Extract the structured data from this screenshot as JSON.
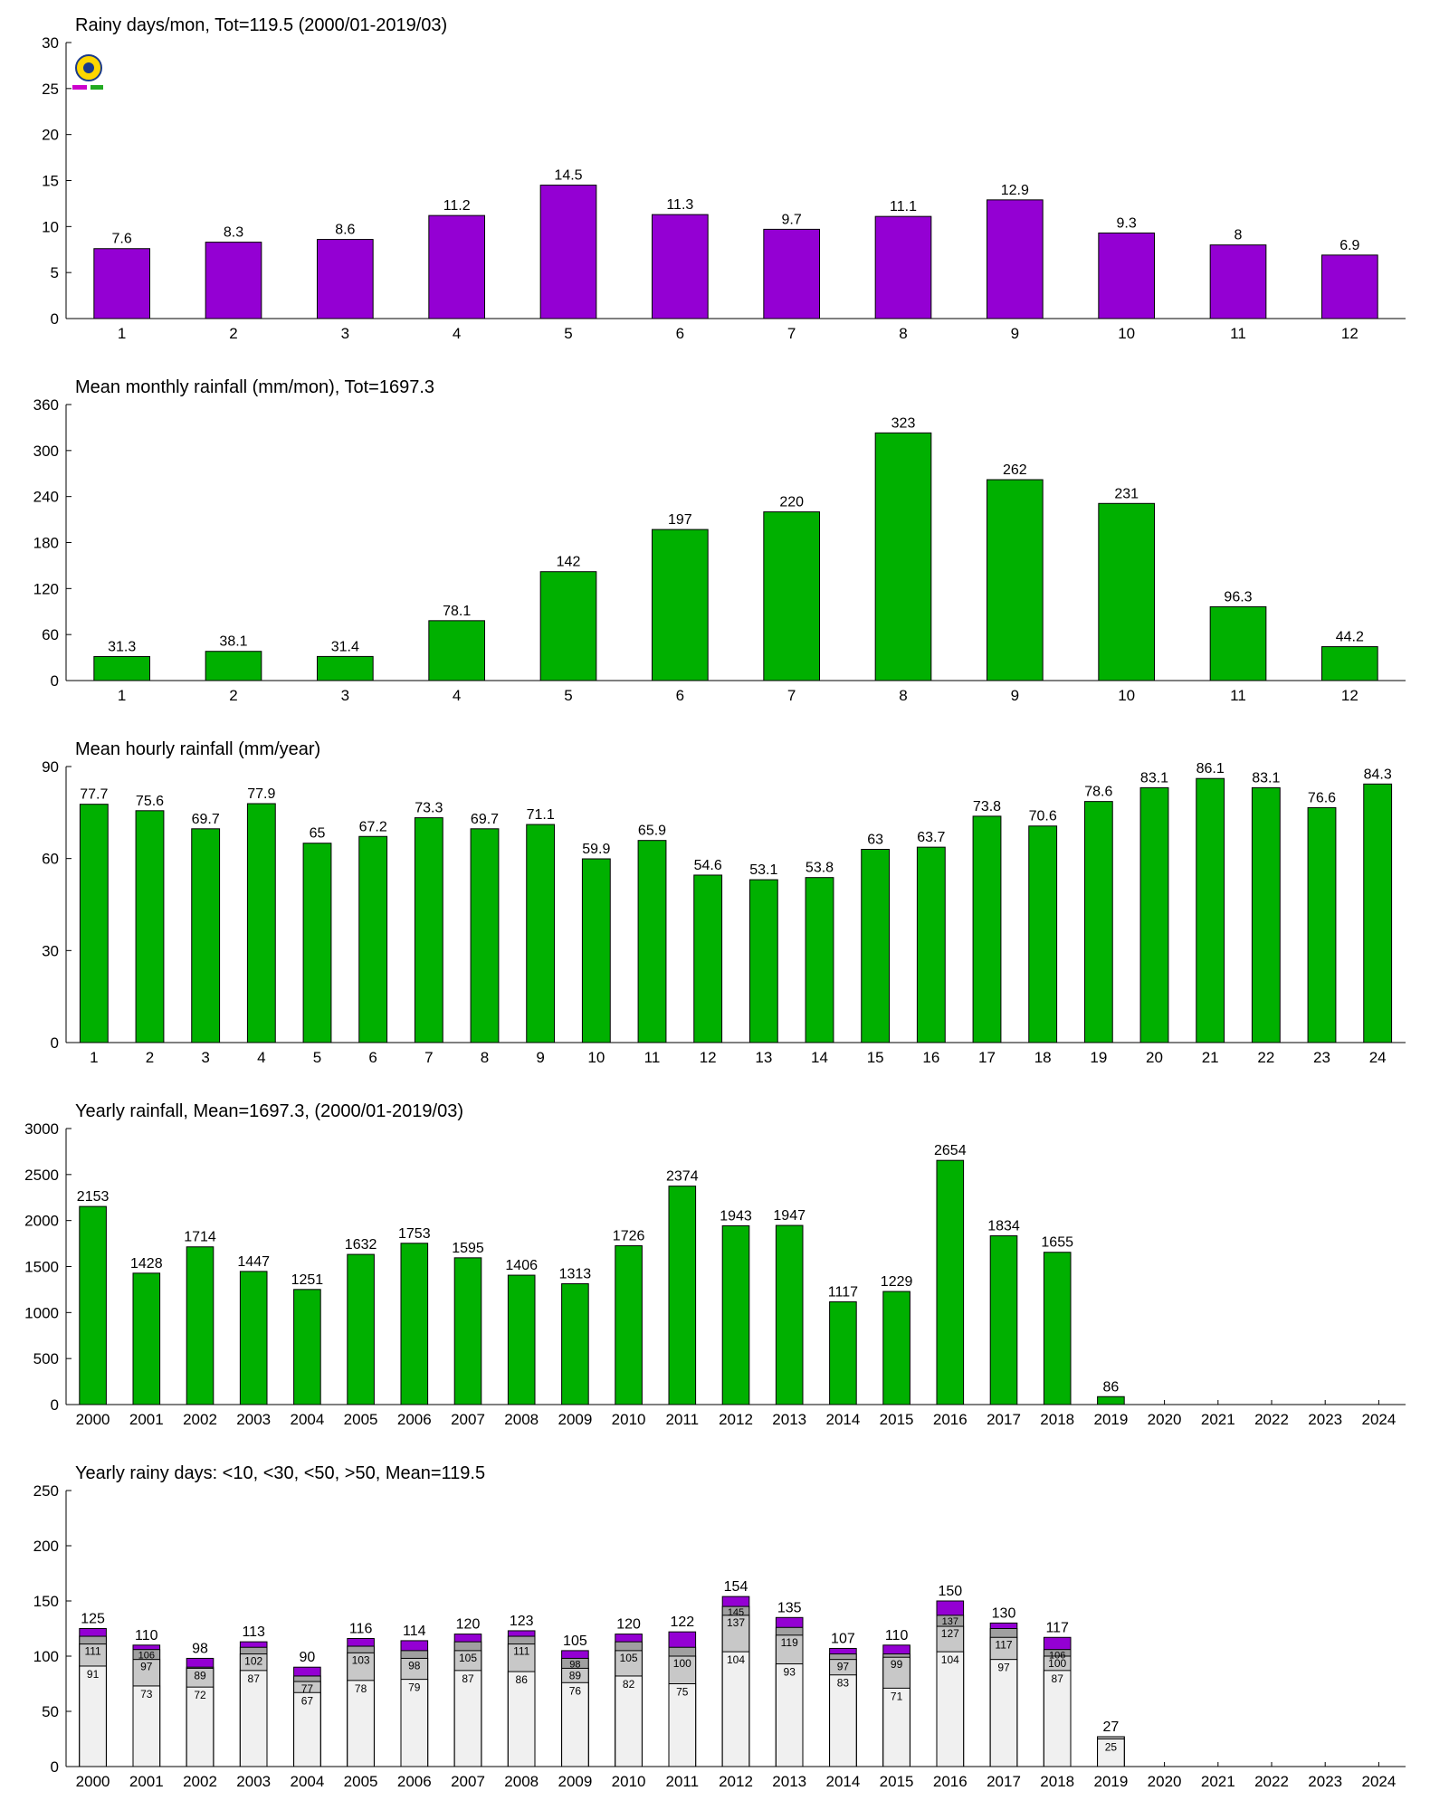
{
  "charts_meta": {
    "purple": "#9400d3",
    "green": "#00b000",
    "gray_dark": "#b4b4b4",
    "gray_mid": "#c8c8c8",
    "gray_light": "#f0f0f0",
    "logo": "station-lab-logo"
  },
  "chart_data": [
    {
      "type": "bar",
      "title": "Rainy days/mon, Tot=119.5 (2000/01-2019/03)",
      "categories": [
        "1",
        "2",
        "3",
        "4",
        "5",
        "6",
        "7",
        "8",
        "9",
        "10",
        "11",
        "12"
      ],
      "values": [
        7.6,
        8.3,
        8.6,
        11.2,
        14.5,
        11.3,
        9.7,
        11.1,
        12.9,
        9.3,
        8,
        6.9
      ],
      "labels": [
        "7.6",
        "8.3",
        "8.6",
        "11.2",
        "14.5",
        "11.3",
        "9.7",
        "11.1",
        "12.9",
        "9.3",
        "8",
        "6.9"
      ],
      "ylim": [
        0,
        30
      ],
      "yticks": [
        "0",
        "5",
        "10",
        "15",
        "20",
        "25",
        "30"
      ],
      "color": "#9400d3"
    },
    {
      "type": "bar",
      "title": "Mean monthly rainfall (mm/mon), Tot=1697.3",
      "categories": [
        "1",
        "2",
        "3",
        "4",
        "5",
        "6",
        "7",
        "8",
        "9",
        "10",
        "11",
        "12"
      ],
      "values": [
        31.3,
        38.1,
        31.4,
        78.1,
        142,
        197,
        220,
        323,
        262,
        231,
        96.3,
        44.2
      ],
      "labels": [
        "31.3",
        "38.1",
        "31.4",
        "78.1",
        "142",
        "197",
        "220",
        "323",
        "262",
        "231",
        "96.3",
        "44.2"
      ],
      "ylim": [
        0,
        360
      ],
      "yticks": [
        "0",
        "60",
        "120",
        "180",
        "240",
        "300",
        "360"
      ],
      "color": "#00b000"
    },
    {
      "type": "bar",
      "title": "Mean hourly rainfall (mm/year)",
      "categories": [
        "1",
        "2",
        "3",
        "4",
        "5",
        "6",
        "7",
        "8",
        "9",
        "10",
        "11",
        "12",
        "13",
        "14",
        "15",
        "16",
        "17",
        "18",
        "19",
        "20",
        "21",
        "22",
        "23",
        "24"
      ],
      "values": [
        77.7,
        75.6,
        69.7,
        77.9,
        65,
        67.2,
        73.3,
        69.7,
        71.1,
        59.9,
        65.9,
        54.6,
        53.1,
        53.8,
        63,
        63.7,
        73.8,
        70.6,
        78.6,
        83.1,
        86.1,
        83.1,
        76.6,
        84.3
      ],
      "labels": [
        "77.7",
        "75.6",
        "69.7",
        "77.9",
        "65",
        "67.2",
        "73.3",
        "69.7",
        "71.1",
        "59.9",
        "65.9",
        "54.6",
        "53.1",
        "53.8",
        "63",
        "63.7",
        "73.8",
        "70.6",
        "78.6",
        "83.1",
        "86.1",
        "83.1",
        "76.6",
        "84.3"
      ],
      "ylim": [
        0,
        90
      ],
      "yticks": [
        "0",
        "30",
        "60",
        "90"
      ],
      "color": "#00b000"
    },
    {
      "type": "bar",
      "title": "Yearly rainfall, Mean=1697.3, (2000/01-2019/03)",
      "categories": [
        "2000",
        "2001",
        "2002",
        "2003",
        "2004",
        "2005",
        "2006",
        "2007",
        "2008",
        "2009",
        "2010",
        "2011",
        "2012",
        "2013",
        "2014",
        "2015",
        "2016",
        "2017",
        "2018",
        "2019",
        "2020",
        "2021",
        "2022",
        "2023",
        "2024"
      ],
      "values": [
        2153,
        1428,
        1714,
        1447,
        1251,
        1632,
        1753,
        1595,
        1406,
        1313,
        1726,
        2374,
        1943,
        1947,
        1117,
        1229,
        2654,
        1834,
        1655,
        86,
        null,
        null,
        null,
        null,
        null
      ],
      "labels": [
        "2153",
        "1428",
        "1714",
        "1447",
        "1251",
        "1632",
        "1753",
        "1595",
        "1406",
        "1313",
        "1726",
        "2374",
        "1943",
        "1947",
        "1117",
        "1229",
        "2654",
        "1834",
        "1655",
        "86",
        "",
        "",
        "",
        "",
        ""
      ],
      "ylim": [
        0,
        3000
      ],
      "yticks": [
        "0",
        "500",
        "1000",
        "1500",
        "2000",
        "2500",
        "3000"
      ],
      "color": "#00b000"
    },
    {
      "type": "bar",
      "stacked": true,
      "title": "Yearly rainy days: <10, <30, <50, >50, Mean=119.5",
      "categories": [
        "2000",
        "2001",
        "2002",
        "2003",
        "2004",
        "2005",
        "2006",
        "2007",
        "2008",
        "2009",
        "2010",
        "2011",
        "2012",
        "2013",
        "2014",
        "2015",
        "2016",
        "2017",
        "2018",
        "2019",
        "2020",
        "2021",
        "2022",
        "2023",
        "2024"
      ],
      "totals": [
        125,
        110,
        98,
        113,
        90,
        116,
        114,
        120,
        123,
        105,
        120,
        122,
        154,
        135,
        107,
        110,
        150,
        130,
        117,
        27,
        null,
        null,
        null,
        null,
        null
      ],
      "cum_lt10": [
        91,
        73,
        72,
        87,
        67,
        78,
        79,
        87,
        86,
        76,
        82,
        75,
        104,
        93,
        83,
        71,
        104,
        97,
        87,
        25,
        null,
        null,
        null,
        null,
        null
      ],
      "cum_lt30": [
        111,
        97,
        89,
        102,
        77,
        103,
        98,
        105,
        111,
        89,
        105,
        100,
        137,
        119,
        97,
        99,
        127,
        117,
        100,
        27,
        null,
        null,
        null,
        null,
        null
      ],
      "cum_lt50": [
        118,
        106,
        90,
        108,
        82,
        109,
        105,
        113,
        118,
        98,
        113,
        108,
        145,
        126,
        102,
        102,
        137,
        125,
        106,
        27,
        null,
        null,
        null,
        null,
        null
      ],
      "total_labels": [
        "125",
        "110",
        "98",
        "113",
        "90",
        "116",
        "114",
        "120",
        "123",
        "105",
        "120",
        "122",
        "154",
        "135",
        "107",
        "110",
        "150",
        "130",
        "117",
        "27",
        "",
        "",
        "",
        "",
        ""
      ],
      "lt10_labels": [
        "91",
        "73",
        "72",
        "87",
        "67",
        "78",
        "79",
        "87",
        "86",
        "76",
        "82",
        "75",
        "104",
        "93",
        "83",
        "71",
        "104",
        "97",
        "87",
        "25",
        "",
        "",
        "",
        "",
        ""
      ],
      "lt30_labels": [
        "111",
        "97",
        "89",
        "102",
        "77",
        "103",
        "98",
        "105",
        "111",
        "89",
        "105",
        "100",
        "137",
        "119",
        "97",
        "99",
        "127",
        "117",
        "100",
        "",
        "",
        "",
        "",
        "",
        ""
      ],
      "lt50_labels": [
        "",
        "106",
        "",
        "",
        "",
        "",
        "",
        "",
        "",
        "98",
        "",
        "",
        "145",
        "",
        "",
        "",
        "137",
        "",
        "106",
        "",
        "",
        "",
        "",
        "",
        ""
      ],
      "ylim": [
        0,
        250
      ],
      "yticks": [
        "0",
        "50",
        "100",
        "150",
        "200",
        "250"
      ],
      "colors": {
        "lt10": "#f0f0f0",
        "lt30": "#c8c8c8",
        "lt50": "#a0a0a0",
        "gt50": "#9400d3"
      }
    }
  ]
}
